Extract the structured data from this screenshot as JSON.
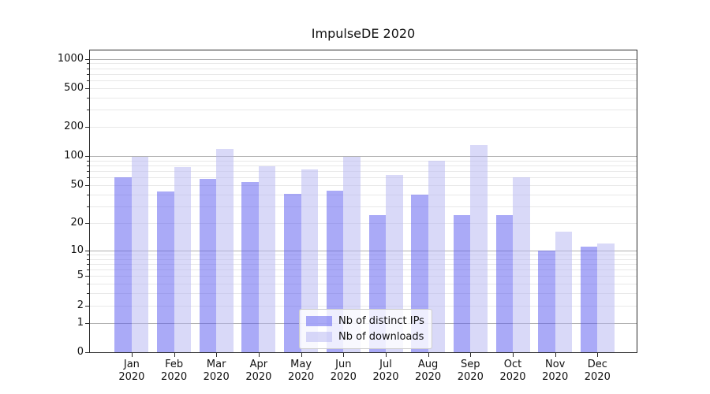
{
  "chart_data": {
    "type": "bar",
    "title": "ImpulseDE 2020",
    "categories": [
      "Jan 2020",
      "Feb 2020",
      "Mar 2020",
      "Apr 2020",
      "May 2020",
      "Jun 2020",
      "Jul 2020",
      "Aug 2020",
      "Sep 2020",
      "Oct 2020",
      "Nov 2020",
      "Dec 2020"
    ],
    "series": [
      {
        "name": "Nb of distinct IPs",
        "color": "rgba(85,85,240,0.5)",
        "values": [
          60,
          43,
          58,
          54,
          41,
          44,
          24,
          40,
          24,
          24,
          10,
          11
        ]
      },
      {
        "name": "Nb of downloads",
        "color": "rgba(180,180,242,0.5)",
        "values": [
          98,
          77,
          119,
          79,
          73,
          99,
          64,
          90,
          130,
          60,
          16,
          12
        ]
      }
    ],
    "yscale": "log1p",
    "ylim": [
      0,
      1215
    ],
    "xlim": [
      -0.985,
      11.925
    ],
    "bar_width": 0.4,
    "yticks": [
      0,
      1,
      2,
      5,
      10,
      20,
      50,
      100,
      200,
      500,
      1000
    ],
    "major_gridlines": [
      1,
      10,
      100,
      1000
    ],
    "minor_gridlines": [
      2,
      3,
      4,
      5,
      6,
      7,
      8,
      9,
      20,
      30,
      40,
      50,
      60,
      70,
      80,
      90,
      200,
      300,
      400,
      500,
      600,
      700,
      800,
      900
    ],
    "grid_color_major": "#b0b0b0",
    "grid_color_minor": "#e8e8e8",
    "legend_position": "inside-bottom-center",
    "background": "#ffffff",
    "text_color": "#111111"
  }
}
